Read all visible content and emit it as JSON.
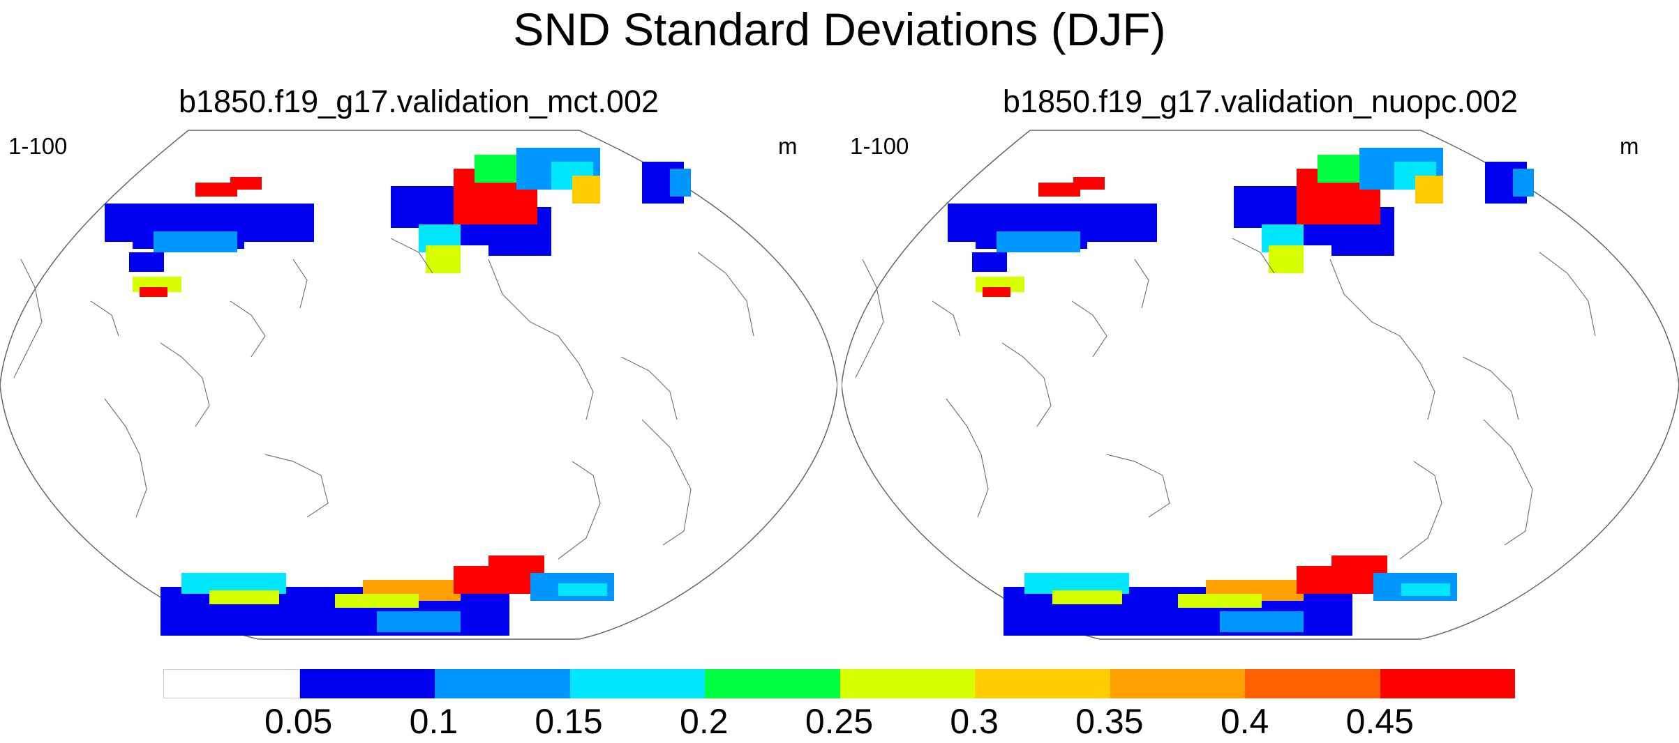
{
  "title": "SND Standard Deviations (DJF)",
  "panels": [
    {
      "title": "b1850.f19_g17.validation_mct.002",
      "left_label": "1-100",
      "right_label": "m"
    },
    {
      "title": "b1850.f19_g17.validation_nuopc.002",
      "left_label": "1-100",
      "right_label": "m"
    }
  ],
  "colorbar": {
    "colors": [
      "#ffffff",
      "#0000f0",
      "#0096ff",
      "#00e6ff",
      "#00ff40",
      "#d8ff00",
      "#ffcc00",
      "#ffa000",
      "#ff6000",
      "#ff0000"
    ],
    "labels": [
      "0.05",
      "0.1",
      "0.15",
      "0.2",
      "0.25",
      "0.3",
      "0.35",
      "0.4",
      "0.45"
    ]
  }
}
